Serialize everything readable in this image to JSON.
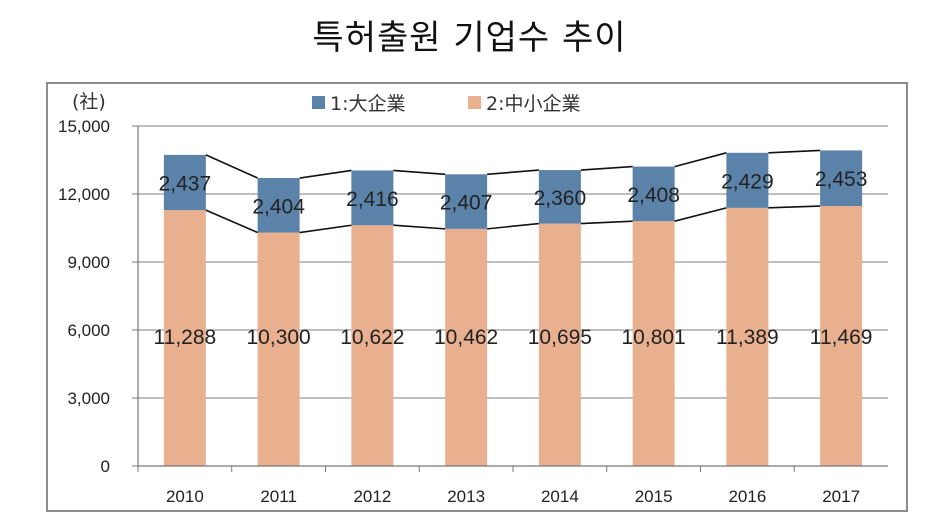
{
  "title": "특허출원 기업수 추이",
  "chart_data": {
    "type": "bar",
    "stacked": true,
    "title": "특허출원 기업수 추이",
    "ylabel": "(社)",
    "xlabel": "",
    "ylim": [
      0,
      15000
    ],
    "yticks": [
      "0",
      "3,000",
      "6,000",
      "9,000",
      "12,000",
      "15,000"
    ],
    "grid": true,
    "legend_position": "top",
    "categories": [
      "2010",
      "2011",
      "2012",
      "2013",
      "2014",
      "2015",
      "2016",
      "2017"
    ],
    "series": [
      {
        "name": "2:中小企業",
        "color": "#e8b08e",
        "values": [
          11288,
          10300,
          10622,
          10462,
          10695,
          10801,
          11389,
          11469
        ],
        "labels": [
          "11,288",
          "10,300",
          "10,622",
          "10,462",
          "10,695",
          "10,801",
          "11,389",
          "11,469"
        ]
      },
      {
        "name": "1:大企業",
        "color": "#5b82a8",
        "values": [
          2437,
          2404,
          2416,
          2407,
          2360,
          2408,
          2429,
          2453
        ],
        "labels": [
          "2,437",
          "2,404",
          "2,416",
          "2,407",
          "2,360",
          "2,408",
          "2,429",
          "2,453"
        ]
      }
    ],
    "legend": [
      {
        "label": "1:大企業",
        "color": "#5b82a8"
      },
      {
        "label": "2:中小企業",
        "color": "#e8b08e"
      }
    ]
  }
}
